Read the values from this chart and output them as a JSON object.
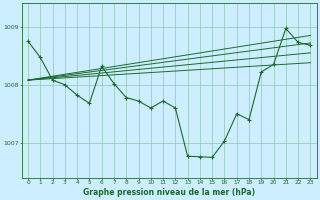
{
  "background_color": "#cceeff",
  "grid_color": "#99ccbb",
  "line_color": "#1a6b2a",
  "title": "Graphe pression niveau de la mer (hPa)",
  "ylabel_vals": [
    1007,
    1008,
    1009
  ],
  "xlim": [
    -0.5,
    23.5
  ],
  "ylim": [
    1006.4,
    1009.4
  ],
  "x_ticks": [
    0,
    1,
    2,
    3,
    4,
    5,
    6,
    7,
    8,
    9,
    10,
    11,
    12,
    13,
    14,
    15,
    16,
    17,
    18,
    19,
    20,
    21,
    22,
    23
  ],
  "main_line": [
    [
      0,
      1008.75
    ],
    [
      1,
      1008.47
    ],
    [
      2,
      1008.08
    ],
    [
      3,
      1008.0
    ],
    [
      4,
      1007.82
    ],
    [
      5,
      1007.68
    ],
    [
      6,
      1008.32
    ],
    [
      7,
      1008.02
    ],
    [
      8,
      1007.78
    ],
    [
      9,
      1007.72
    ],
    [
      10,
      1007.6
    ],
    [
      11,
      1007.72
    ],
    [
      12,
      1007.6
    ],
    [
      13,
      1006.77
    ],
    [
      14,
      1006.76
    ],
    [
      15,
      1006.75
    ],
    [
      16,
      1007.03
    ],
    [
      17,
      1007.5
    ],
    [
      18,
      1007.4
    ],
    [
      19,
      1008.22
    ],
    [
      20,
      1008.35
    ],
    [
      21,
      1008.97
    ],
    [
      22,
      1008.73
    ],
    [
      23,
      1008.68
    ]
  ],
  "smooth_line1": [
    [
      0,
      1008.08
    ],
    [
      23,
      1008.38
    ]
  ],
  "smooth_line2": [
    [
      0,
      1008.08
    ],
    [
      23,
      1008.55
    ]
  ],
  "smooth_line3": [
    [
      0,
      1008.08
    ],
    [
      23,
      1008.72
    ]
  ],
  "smooth_line4": [
    [
      0,
      1008.08
    ],
    [
      23,
      1008.85
    ]
  ]
}
